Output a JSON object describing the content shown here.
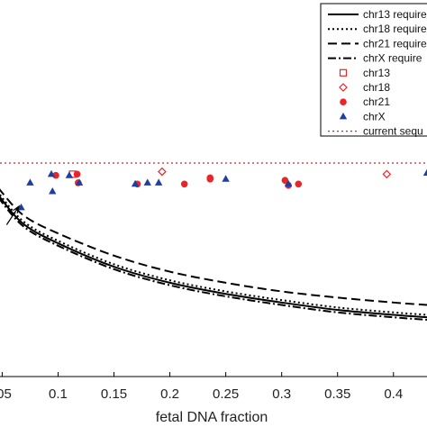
{
  "chart_data": {
    "type": "line",
    "xlabel": "fetal DNA fraction",
    "ylabel": "",
    "xlim": [
      0.04,
      0.43
    ],
    "x_ticks": [
      {
        "value": 0.05,
        "label": ".05"
      },
      {
        "value": 0.1,
        "label": "0.1"
      },
      {
        "value": 0.15,
        "label": "0.15"
      },
      {
        "value": 0.2,
        "label": "0.2"
      },
      {
        "value": 0.25,
        "label": "0.25"
      },
      {
        "value": 0.3,
        "label": "0.3"
      },
      {
        "value": 0.35,
        "label": "0.35"
      },
      {
        "value": 0.4,
        "label": "0.4"
      }
    ],
    "legend": {
      "placement": "top-right",
      "entries": [
        {
          "label": "chr13 require",
          "style": "solid-line"
        },
        {
          "label": "chr18 require",
          "style": "dotted-line"
        },
        {
          "label": "chr21 require",
          "style": "dashed-line"
        },
        {
          "label": "chrX require",
          "style": "dash-dot-line"
        },
        {
          "label": "chr13",
          "style": "open-square"
        },
        {
          "label": "chr18",
          "style": "open-diamond"
        },
        {
          "label": "chr21",
          "style": "filled-circle"
        },
        {
          "label": "chrX",
          "style": "filled-triangle"
        },
        {
          "label": "current sequ",
          "style": "dotted-line"
        }
      ]
    },
    "current_sequencing_level": 1.0,
    "series": [
      {
        "name": "chr13 require",
        "style": "solid",
        "x": [
          0.04,
          0.05,
          0.07,
          0.1,
          0.15,
          0.2,
          0.25,
          0.3,
          0.35,
          0.4,
          0.43
        ],
        "values": [
          0.85,
          0.7,
          0.5,
          0.35,
          0.16,
          0.03,
          -0.06,
          -0.13,
          -0.19,
          -0.23,
          -0.25
        ]
      },
      {
        "name": "chr18 require",
        "style": "dotted",
        "x": [
          0.04,
          0.05,
          0.07,
          0.1,
          0.15,
          0.2,
          0.25,
          0.3,
          0.35,
          0.4,
          0.43
        ],
        "values": [
          0.87,
          0.72,
          0.52,
          0.37,
          0.18,
          0.05,
          -0.04,
          -0.11,
          -0.17,
          -0.21,
          -0.23
        ]
      },
      {
        "name": "chr21 require",
        "style": "dashed",
        "x": [
          0.04,
          0.05,
          0.07,
          0.1,
          0.15,
          0.2,
          0.25,
          0.3,
          0.35,
          0.4,
          0.43
        ],
        "values": [
          0.89,
          0.76,
          0.57,
          0.43,
          0.25,
          0.12,
          0.03,
          -0.04,
          -0.09,
          -0.13,
          -0.15
        ]
      },
      {
        "name": "chrX require",
        "style": "dash-dot",
        "x": [
          0.04,
          0.05,
          0.07,
          0.1,
          0.15,
          0.2,
          0.25,
          0.3,
          0.35,
          0.4,
          0.43
        ],
        "values": [
          0.83,
          0.68,
          0.48,
          0.33,
          0.14,
          0.01,
          -0.08,
          -0.15,
          -0.21,
          -0.25,
          -0.27
        ]
      }
    ],
    "points": {
      "chr13": {
        "x": [
          0.113
        ],
        "y": [
          0.91
        ]
      },
      "chr18": {
        "x": [
          0.193,
          0.394
        ],
        "y": [
          0.93,
          0.91
        ]
      },
      "chr21": {
        "x": [
          0.098,
          0.117,
          0.118,
          0.171,
          0.213,
          0.236,
          0.236,
          0.303,
          0.306,
          0.315
        ],
        "y": [
          0.9,
          0.91,
          0.84,
          0.83,
          0.83,
          0.88,
          0.87,
          0.86,
          0.82,
          0.83
        ]
      },
      "chrX": {
        "x": [
          0.067,
          0.075,
          0.094,
          0.095,
          0.11,
          0.119,
          0.169,
          0.18,
          0.19,
          0.25,
          0.306,
          0.43
        ],
        "y": [
          0.64,
          0.84,
          0.91,
          0.77,
          0.9,
          0.84,
          0.83,
          0.84,
          0.84,
          0.87,
          0.83,
          0.92
        ]
      }
    },
    "annotation": {
      "type": "arrow",
      "from": [
        0.054,
        0.5
      ],
      "to": [
        0.065,
        0.65
      ]
    }
  },
  "colors": {
    "axis": "#000000",
    "lines": "#000000",
    "red": "#e8262a",
    "blue": "#1f3fa0"
  }
}
